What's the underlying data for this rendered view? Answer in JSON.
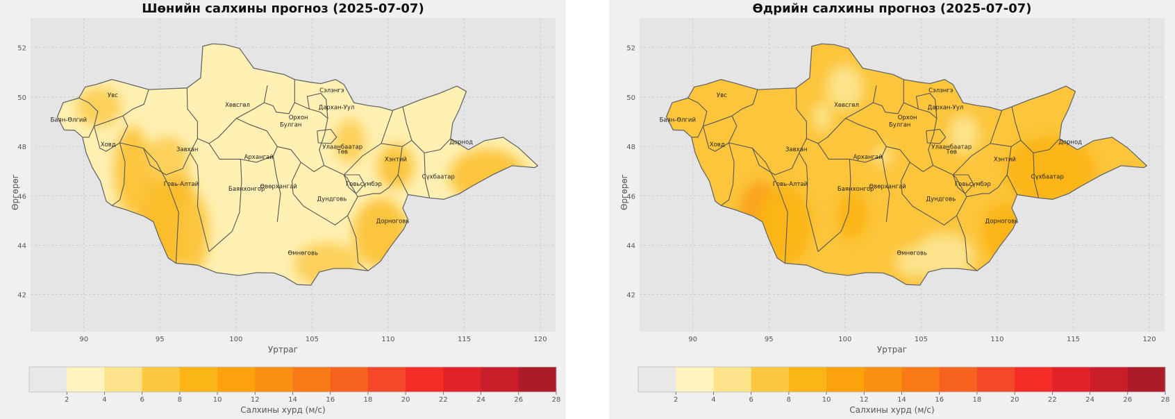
{
  "panels": [
    {
      "title": "Шөнийн салхины прогноз (2025-07-07)",
      "xlabel": "Уртраг",
      "ylabel": "Өргөрөг",
      "colorbar_label": "Салхины хурд (м/с)",
      "base_color": "#fff0b3",
      "patches": [
        {
          "lon": 95.2,
          "lat": 45.6,
          "rx": 1.2,
          "ry": 1.4,
          "color": "#f9a21a"
        },
        {
          "lon": 95.5,
          "lat": 45.2,
          "rx": 2.0,
          "ry": 2.2,
          "color": "#fbbd2c"
        },
        {
          "lon": 93.2,
          "lat": 47.0,
          "rx": 1.2,
          "ry": 1.8,
          "color": "#fcc53c"
        },
        {
          "lon": 97.2,
          "lat": 44.5,
          "rx": 1.0,
          "ry": 1.6,
          "color": "#fcc53c"
        },
        {
          "lon": 91.0,
          "lat": 49.6,
          "rx": 1.5,
          "ry": 0.8,
          "color": "#fcd05a"
        },
        {
          "lon": 95.5,
          "lat": 47.5,
          "rx": 1.4,
          "ry": 0.9,
          "color": "#fcd05a"
        },
        {
          "lon": 109.5,
          "lat": 44.5,
          "rx": 1.8,
          "ry": 1.4,
          "color": "#fcc53c"
        },
        {
          "lon": 110.5,
          "lat": 47.2,
          "rx": 1.2,
          "ry": 0.9,
          "color": "#fcc53c"
        },
        {
          "lon": 116.5,
          "lat": 46.8,
          "rx": 2.5,
          "ry": 1.1,
          "color": "#fcc53c"
        },
        {
          "lon": 106.0,
          "lat": 43.2,
          "rx": 2.2,
          "ry": 0.9,
          "color": "#fcd05a"
        },
        {
          "lon": 107.5,
          "lat": 48.2,
          "rx": 1.0,
          "ry": 0.9,
          "color": "#fcd05a"
        }
      ],
      "colorbar": {
        "ticks": [
          "2",
          "4",
          "6",
          "8",
          "10",
          "12",
          "14",
          "16",
          "18",
          "20",
          "22",
          "24",
          "26",
          "28"
        ],
        "colors": [
          "#e8e8e8",
          "#fff3bf",
          "#fde38c",
          "#fdc83f",
          "#fbb516",
          "#fba20d",
          "#f99012",
          "#f87b17",
          "#f7621f",
          "#f5482b",
          "#f52d28",
          "#e02329",
          "#c91d2a",
          "#ad1b29"
        ]
      },
      "regions": [
        {
          "name": "Увс",
          "lon": 91.9,
          "lat": 50.0
        },
        {
          "name": "Баян-Өлгий",
          "lon": 89.0,
          "lat": 49.0
        },
        {
          "name": "Ховд",
          "lon": 91.6,
          "lat": 48.0
        },
        {
          "name": "Завхан",
          "lon": 96.8,
          "lat": 47.8
        },
        {
          "name": "Говь-Алтай",
          "lon": 96.4,
          "lat": 46.4
        },
        {
          "name": "Хөвсгөл",
          "lon": 100.1,
          "lat": 49.6
        },
        {
          "name": "Архангай",
          "lon": 101.5,
          "lat": 47.5
        },
        {
          "name": "Баянхонгор",
          "lon": 100.7,
          "lat": 46.2
        },
        {
          "name": "Өвөрхангай",
          "lon": 102.8,
          "lat": 46.3
        },
        {
          "name": "Булган",
          "lon": 103.6,
          "lat": 48.8
        },
        {
          "name": "Орхон",
          "lon": 104.1,
          "lat": 49.1
        },
        {
          "name": "Сэлэнгэ",
          "lon": 106.3,
          "lat": 50.2
        },
        {
          "name": "Дархан-Уул",
          "lon": 106.6,
          "lat": 49.5
        },
        {
          "name": "Улаанбаатар",
          "lon": 107.0,
          "lat": 47.9
        },
        {
          "name": "Төв",
          "lon": 107.0,
          "lat": 47.7
        },
        {
          "name": "Хэнтий",
          "lon": 110.5,
          "lat": 47.4
        },
        {
          "name": "Дорнод",
          "lon": 114.8,
          "lat": 48.1
        },
        {
          "name": "Сүхбаатар",
          "lon": 113.3,
          "lat": 46.7
        },
        {
          "name": "Говьсүмбэр",
          "lon": 108.4,
          "lat": 46.4
        },
        {
          "name": "Дундговь",
          "lon": 106.3,
          "lat": 45.8
        },
        {
          "name": "Дорноговь",
          "lon": 110.3,
          "lat": 44.9
        },
        {
          "name": "Өмнөговь",
          "lon": 104.4,
          "lat": 43.6
        }
      ]
    },
    {
      "title": "Өдрийн салхины прогноз (2025-07-07)",
      "xlabel": "Уртраг",
      "ylabel": "Өргөрөг",
      "colorbar_label": "Салхины хурд (м/с)",
      "base_color": "#fcc53c",
      "patches": [
        {
          "lon": 94.5,
          "lat": 45.4,
          "rx": 1.4,
          "ry": 1.2,
          "color": "#f9a21a"
        },
        {
          "lon": 96.0,
          "lat": 44.8,
          "rx": 1.8,
          "ry": 1.6,
          "color": "#fbb516"
        },
        {
          "lon": 106.5,
          "lat": 43.5,
          "rx": 2.0,
          "ry": 1.0,
          "color": "#fde38c"
        },
        {
          "lon": 104.5,
          "lat": 43.3,
          "rx": 1.2,
          "ry": 0.6,
          "color": "#fde38c"
        },
        {
          "lon": 100.0,
          "lat": 50.4,
          "rx": 1.2,
          "ry": 0.9,
          "color": "#fde38c"
        },
        {
          "lon": 98.5,
          "lat": 49.2,
          "rx": 0.6,
          "ry": 0.6,
          "color": "#fde38c"
        },
        {
          "lon": 102.5,
          "lat": 47.6,
          "rx": 0.6,
          "ry": 0.4,
          "color": "#fde38c"
        },
        {
          "lon": 107.8,
          "lat": 48.5,
          "rx": 1.0,
          "ry": 0.8,
          "color": "#fde38c"
        },
        {
          "lon": 113.5,
          "lat": 47.0,
          "rx": 3.0,
          "ry": 1.4,
          "color": "#fbb516"
        },
        {
          "lon": 110.5,
          "lat": 44.5,
          "rx": 1.5,
          "ry": 1.2,
          "color": "#fbb516"
        },
        {
          "lon": 100.5,
          "lat": 45.2,
          "rx": 1.0,
          "ry": 1.0,
          "color": "#fbb516"
        }
      ],
      "colorbar": {
        "ticks": [
          "2",
          "4",
          "6",
          "8",
          "10",
          "12",
          "14",
          "16",
          "18",
          "20",
          "22",
          "24",
          "26",
          "28"
        ],
        "colors": [
          "#e8e8e8",
          "#fff3bf",
          "#fde38c",
          "#fdc83f",
          "#fbb516",
          "#fba20d",
          "#f99012",
          "#f87b17",
          "#f7621f",
          "#f5482b",
          "#f52d28",
          "#e02329",
          "#c91d2a",
          "#ad1b29"
        ]
      },
      "regions": [
        {
          "name": "Увс",
          "lon": 91.9,
          "lat": 50.0
        },
        {
          "name": "Баян-Өлгий",
          "lon": 89.0,
          "lat": 49.0
        },
        {
          "name": "Ховд",
          "lon": 91.6,
          "lat": 48.0
        },
        {
          "name": "Завхан",
          "lon": 96.8,
          "lat": 47.8
        },
        {
          "name": "Говь-Алтай",
          "lon": 96.4,
          "lat": 46.4
        },
        {
          "name": "Хөвсгөл",
          "lon": 100.1,
          "lat": 49.6
        },
        {
          "name": "Архангай",
          "lon": 101.5,
          "lat": 47.5
        },
        {
          "name": "Баянхонгор",
          "lon": 100.7,
          "lat": 46.2
        },
        {
          "name": "Өвөрхангай",
          "lon": 102.8,
          "lat": 46.3
        },
        {
          "name": "Булган",
          "lon": 103.6,
          "lat": 48.8
        },
        {
          "name": "Орхон",
          "lon": 104.1,
          "lat": 49.1
        },
        {
          "name": "Сэлэнгэ",
          "lon": 106.3,
          "lat": 50.2
        },
        {
          "name": "Дархан-Уул",
          "lon": 106.6,
          "lat": 49.5
        },
        {
          "name": "Улаанбаатар",
          "lon": 107.0,
          "lat": 47.9
        },
        {
          "name": "Төв",
          "lon": 107.0,
          "lat": 47.7
        },
        {
          "name": "Хэнтий",
          "lon": 110.5,
          "lat": 47.4
        },
        {
          "name": "Дорнод",
          "lon": 114.8,
          "lat": 48.1
        },
        {
          "name": "Сүхбаатар",
          "lon": 113.3,
          "lat": 46.7
        },
        {
          "name": "Говьсүмбэр",
          "lon": 108.4,
          "lat": 46.4
        },
        {
          "name": "Дундговь",
          "lon": 106.3,
          "lat": 45.8
        },
        {
          "name": "Дорноговь",
          "lon": 110.3,
          "lat": 44.9
        },
        {
          "name": "Өмнөговь",
          "lon": 104.4,
          "lat": 43.6
        }
      ]
    }
  ],
  "axes": {
    "x_ticks": [
      "90",
      "95",
      "100",
      "105",
      "110",
      "115",
      "120"
    ],
    "y_ticks": [
      "42",
      "44",
      "46",
      "48",
      "50",
      "52"
    ]
  }
}
